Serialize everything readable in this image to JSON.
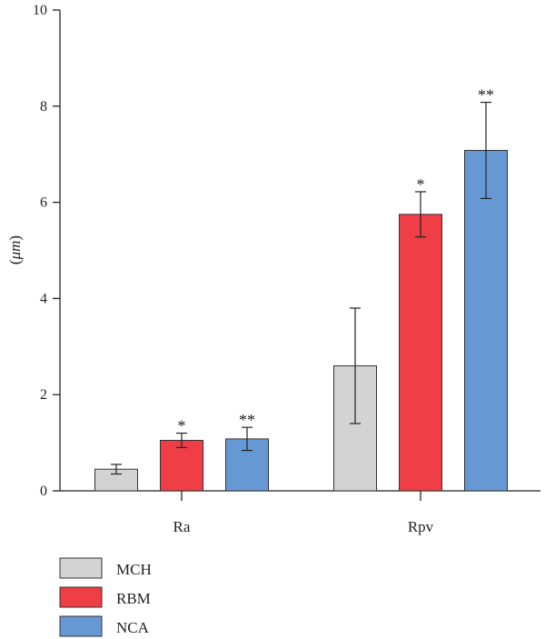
{
  "chart_data": {
    "type": "bar",
    "categories": [
      "Ra",
      "Rpv"
    ],
    "ylabel_prefix": "(",
    "ylabel_unit": "μm",
    "ylabel_suffix": ")",
    "ylim": [
      0,
      10
    ],
    "yticks": [
      "0",
      "2",
      "4",
      "6",
      "8",
      "10"
    ],
    "grid": false,
    "legend_position": "bottom-left",
    "series": [
      {
        "name": "MCH",
        "color": "#d3d3d3",
        "values": [
          0.45,
          2.6
        ],
        "errors": [
          0.1,
          1.2
        ],
        "significance": [
          "",
          ""
        ]
      },
      {
        "name": "RBM",
        "color": "#ef3e45",
        "values": [
          1.05,
          5.75
        ],
        "errors": [
          0.15,
          0.47
        ],
        "significance": [
          "*",
          "*"
        ]
      },
      {
        "name": "NCA",
        "color": "#6699d4",
        "values": [
          1.08,
          7.08
        ],
        "errors": [
          0.24,
          1.0
        ],
        "significance": [
          "**",
          "**"
        ]
      }
    ]
  }
}
